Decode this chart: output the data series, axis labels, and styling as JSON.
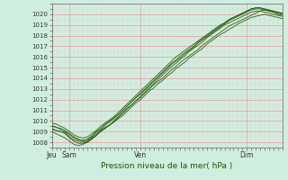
{
  "title": "",
  "xlabel": "Pression niveau de la mer( hPa )",
  "ylabel": "",
  "bg_color": "#d0eee0",
  "grid_color_major": "#ee9999",
  "grid_color_minor": "#eecccc",
  "line_color_dark": "#1a5500",
  "line_color_light": "#44aa22",
  "ylim": [
    1007.5,
    1021.0
  ],
  "yticks": [
    1008,
    1009,
    1010,
    1011,
    1012,
    1013,
    1014,
    1015,
    1016,
    1017,
    1018,
    1019,
    1020
  ],
  "xtick_labels": [
    "Jeu",
    "Sam",
    "Ven",
    "Dim"
  ],
  "xtick_positions": [
    0,
    12,
    60,
    132
  ],
  "total_hours": 156,
  "lines": [
    [
      0,
      1009.2,
      3,
      1009.1,
      6,
      1009.0,
      9,
      1008.9,
      12,
      1008.5,
      15,
      1008.2,
      18,
      1008.1,
      21,
      1008.0,
      24,
      1008.1,
      27,
      1008.4,
      30,
      1008.7,
      33,
      1009.1,
      36,
      1009.4,
      39,
      1009.6,
      42,
      1009.9,
      45,
      1010.3,
      48,
      1010.7,
      51,
      1011.1,
      54,
      1011.5,
      57,
      1011.9,
      60,
      1012.2,
      63,
      1012.6,
      66,
      1013.0,
      69,
      1013.4,
      72,
      1013.7,
      75,
      1014.0,
      78,
      1014.4,
      81,
      1014.8,
      84,
      1015.1,
      87,
      1015.5,
      90,
      1015.8,
      93,
      1016.1,
      96,
      1016.4,
      99,
      1016.7,
      102,
      1017.1,
      105,
      1017.4,
      108,
      1017.7,
      111,
      1018.0,
      114,
      1018.3,
      117,
      1018.6,
      120,
      1018.9,
      123,
      1019.1,
      126,
      1019.3,
      129,
      1019.5,
      132,
      1019.7,
      135,
      1019.9,
      138,
      1020.1,
      141,
      1020.3,
      144,
      1020.4,
      147,
      1020.3,
      150,
      1020.2,
      153,
      1020.0,
      156,
      1019.9
    ],
    [
      0,
      1009.5,
      3,
      1009.4,
      6,
      1009.3,
      9,
      1009.1,
      12,
      1008.8,
      15,
      1008.5,
      18,
      1008.3,
      21,
      1008.1,
      24,
      1008.2,
      27,
      1008.5,
      30,
      1008.9,
      33,
      1009.2,
      36,
      1009.6,
      39,
      1009.9,
      42,
      1010.2,
      45,
      1010.6,
      48,
      1011.0,
      51,
      1011.4,
      54,
      1011.8,
      57,
      1012.2,
      60,
      1012.5,
      63,
      1012.9,
      66,
      1013.3,
      69,
      1013.7,
      72,
      1014.1,
      75,
      1014.5,
      78,
      1014.9,
      81,
      1015.3,
      84,
      1015.6,
      87,
      1015.9,
      90,
      1016.3,
      93,
      1016.6,
      96,
      1016.9,
      99,
      1017.3,
      102,
      1017.6,
      105,
      1017.9,
      108,
      1018.2,
      111,
      1018.5,
      114,
      1018.8,
      117,
      1019.1,
      120,
      1019.4,
      123,
      1019.6,
      126,
      1019.8,
      129,
      1020.0,
      132,
      1020.2,
      135,
      1020.4,
      138,
      1020.5,
      141,
      1020.5,
      144,
      1020.4,
      147,
      1020.3,
      150,
      1020.2,
      153,
      1020.1,
      156,
      1020.0
    ],
    [
      0,
      1009.8,
      3,
      1009.7,
      6,
      1009.5,
      9,
      1009.3,
      12,
      1009.0,
      15,
      1008.7,
      18,
      1008.5,
      21,
      1008.4,
      24,
      1008.5,
      27,
      1008.8,
      30,
      1009.1,
      33,
      1009.5,
      36,
      1009.8,
      39,
      1010.1,
      42,
      1010.4,
      45,
      1010.8,
      48,
      1011.2,
      51,
      1011.6,
      54,
      1012.0,
      57,
      1012.4,
      60,
      1012.8,
      63,
      1013.2,
      66,
      1013.6,
      69,
      1014.0,
      72,
      1014.4,
      75,
      1014.8,
      78,
      1015.2,
      81,
      1015.6,
      84,
      1016.0,
      87,
      1016.3,
      90,
      1016.6,
      93,
      1016.9,
      96,
      1017.2,
      99,
      1017.5,
      102,
      1017.8,
      105,
      1018.1,
      108,
      1018.4,
      111,
      1018.7,
      114,
      1019.0,
      117,
      1019.2,
      120,
      1019.5,
      123,
      1019.7,
      126,
      1019.9,
      129,
      1020.1,
      132,
      1020.3,
      135,
      1020.5,
      138,
      1020.6,
      141,
      1020.6,
      144,
      1020.5,
      147,
      1020.4,
      150,
      1020.3,
      153,
      1020.2,
      156,
      1020.1
    ],
    [
      0,
      1009.0,
      3,
      1008.8,
      6,
      1008.6,
      9,
      1008.4,
      12,
      1008.1,
      15,
      1007.8,
      18,
      1007.7,
      21,
      1007.8,
      24,
      1008.0,
      27,
      1008.3,
      30,
      1008.6,
      33,
      1009.0,
      36,
      1009.3,
      39,
      1009.6,
      42,
      1009.9,
      45,
      1010.2,
      48,
      1010.5,
      51,
      1010.9,
      54,
      1011.3,
      57,
      1011.7,
      60,
      1012.0,
      63,
      1012.4,
      66,
      1012.8,
      69,
      1013.1,
      72,
      1013.5,
      75,
      1013.8,
      78,
      1014.2,
      81,
      1014.5,
      84,
      1014.9,
      87,
      1015.2,
      90,
      1015.5,
      93,
      1015.9,
      96,
      1016.2,
      99,
      1016.5,
      102,
      1016.8,
      105,
      1017.2,
      108,
      1017.5,
      111,
      1017.8,
      114,
      1018.1,
      117,
      1018.3,
      120,
      1018.6,
      123,
      1018.8,
      126,
      1019.1,
      129,
      1019.3,
      132,
      1019.5,
      135,
      1019.7,
      138,
      1019.8,
      141,
      1019.9,
      144,
      1020.0,
      147,
      1019.9,
      150,
      1019.8,
      153,
      1019.7,
      156,
      1019.6
    ],
    [
      0,
      1009.3,
      3,
      1009.1,
      6,
      1009.0,
      9,
      1008.8,
      12,
      1008.4,
      15,
      1008.1,
      18,
      1007.9,
      21,
      1007.9,
      24,
      1008.0,
      27,
      1008.3,
      30,
      1008.7,
      33,
      1009.0,
      36,
      1009.3,
      39,
      1009.6,
      42,
      1010.0,
      45,
      1010.4,
      48,
      1010.8,
      51,
      1011.2,
      54,
      1011.5,
      57,
      1011.9,
      60,
      1012.3,
      63,
      1012.7,
      66,
      1013.1,
      69,
      1013.5,
      72,
      1013.9,
      75,
      1014.3,
      78,
      1014.7,
      81,
      1015.1,
      84,
      1015.4,
      87,
      1015.8,
      90,
      1016.1,
      93,
      1016.5,
      96,
      1016.8,
      99,
      1017.1,
      102,
      1017.4,
      105,
      1017.8,
      108,
      1018.1,
      111,
      1018.4,
      114,
      1018.7,
      117,
      1019.0,
      120,
      1019.2,
      123,
      1019.4,
      126,
      1019.6,
      129,
      1019.8,
      132,
      1020.0,
      135,
      1020.2,
      138,
      1020.3,
      141,
      1020.3,
      144,
      1020.2,
      147,
      1020.1,
      150,
      1020.0,
      153,
      1019.9,
      156,
      1019.8
    ],
    [
      0,
      1009.6,
      3,
      1009.4,
      6,
      1009.2,
      9,
      1009.0,
      12,
      1008.7,
      15,
      1008.4,
      18,
      1008.2,
      21,
      1008.2,
      24,
      1008.3,
      27,
      1008.6,
      30,
      1009.0,
      33,
      1009.3,
      36,
      1009.7,
      39,
      1010.0,
      42,
      1010.3,
      45,
      1010.6,
      48,
      1011.0,
      51,
      1011.4,
      54,
      1011.8,
      57,
      1012.2,
      60,
      1012.6,
      63,
      1013.0,
      66,
      1013.4,
      69,
      1013.8,
      72,
      1014.2,
      75,
      1014.6,
      78,
      1015.0,
      81,
      1015.4,
      84,
      1015.7,
      87,
      1016.1,
      90,
      1016.4,
      93,
      1016.7,
      96,
      1017.0,
      99,
      1017.4,
      102,
      1017.7,
      105,
      1018.0,
      108,
      1018.3,
      111,
      1018.6,
      114,
      1018.9,
      117,
      1019.2,
      120,
      1019.5,
      123,
      1019.7,
      126,
      1019.9,
      129,
      1020.1,
      132,
      1020.3,
      135,
      1020.5,
      138,
      1020.6,
      141,
      1020.6,
      144,
      1020.5,
      147,
      1020.4,
      150,
      1020.3,
      153,
      1020.2,
      156,
      1020.1
    ]
  ],
  "figsize": [
    3.2,
    2.0
  ],
  "dpi": 100
}
